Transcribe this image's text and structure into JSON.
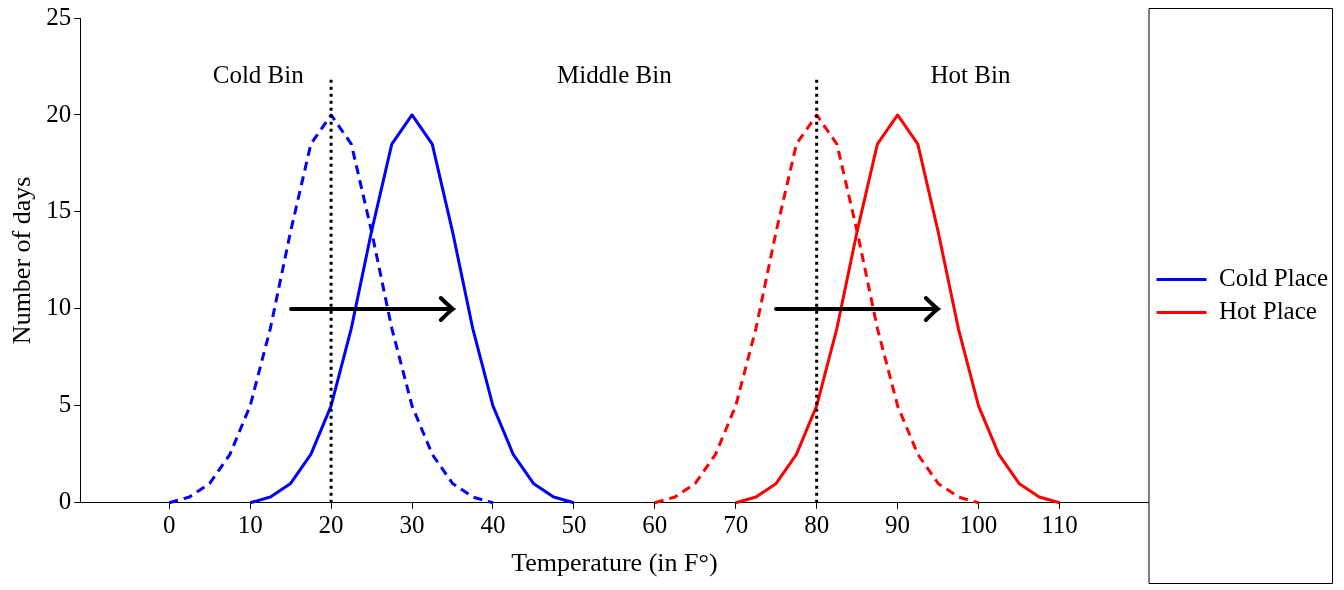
{
  "chart_data": {
    "type": "line",
    "xlabel": "Temperature (in F°)",
    "ylabel": "Number of days",
    "series": [
      {
        "color": "#0000ff",
        "line_style": "dashed",
        "x": [
          0,
          2.5,
          5,
          7.5,
          10,
          12.5,
          15,
          17.5,
          20,
          22.5,
          25,
          27.5,
          30,
          32.5,
          35,
          37.5,
          40
        ],
        "values": [
          0,
          0.3,
          1,
          2.5,
          5,
          9,
          14,
          18.5,
          20,
          18.5,
          14,
          9,
          5,
          2.5,
          1,
          0.3,
          0
        ]
      },
      {
        "name": "Cold Place",
        "color": "#0000ff",
        "line_style": "solid",
        "x": [
          10,
          12.5,
          15,
          17.5,
          20,
          22.5,
          25,
          27.5,
          30,
          32.5,
          35,
          37.5,
          40,
          42.5,
          45,
          47.5,
          50
        ],
        "values": [
          0,
          0.3,
          1,
          2.5,
          5,
          9,
          14,
          18.5,
          20,
          18.5,
          14,
          9,
          5,
          2.5,
          1,
          0.3,
          0
        ]
      },
      {
        "color": "#ff0000",
        "line_style": "dashed",
        "x": [
          60,
          62.5,
          65,
          67.5,
          70,
          72.5,
          75,
          77.5,
          80,
          82.5,
          85,
          87.5,
          90,
          92.5,
          95,
          97.5,
          100
        ],
        "values": [
          0,
          0.3,
          1,
          2.5,
          5,
          9,
          14,
          18.5,
          20,
          18.5,
          14,
          9,
          5,
          2.5,
          1,
          0.3,
          0
        ]
      },
      {
        "name": "Hot Place",
        "color": "#ff0000",
        "line_style": "solid",
        "x": [
          70,
          72.5,
          75,
          77.5,
          80,
          82.5,
          85,
          87.5,
          90,
          92.5,
          95,
          97.5,
          100,
          102.5,
          105,
          107.5,
          110
        ],
        "values": [
          0,
          0.3,
          1,
          2.5,
          5,
          9,
          14,
          18.5,
          20,
          18.5,
          14,
          9,
          5,
          2.5,
          1,
          0.3,
          0
        ]
      }
    ],
    "xlim": [
      -11,
      121
    ],
    "xticks": [
      0,
      10,
      20,
      30,
      40,
      50,
      60,
      70,
      80,
      90,
      100,
      110
    ],
    "ylim": [
      0,
      25
    ],
    "yticks": [
      0,
      5,
      10,
      15,
      20,
      25
    ],
    "ref_lines": [
      {
        "axis": "x",
        "value": 20,
        "color": "#000000",
        "line_style": "dotted"
      },
      {
        "axis": "x",
        "value": 80,
        "color": "#000000",
        "line_style": "dotted"
      }
    ],
    "annotations": [
      "Cold Bin",
      "Middle Bin",
      "Hot Bin"
    ],
    "grid": false,
    "legend": "right",
    "marker": "none"
  }
}
